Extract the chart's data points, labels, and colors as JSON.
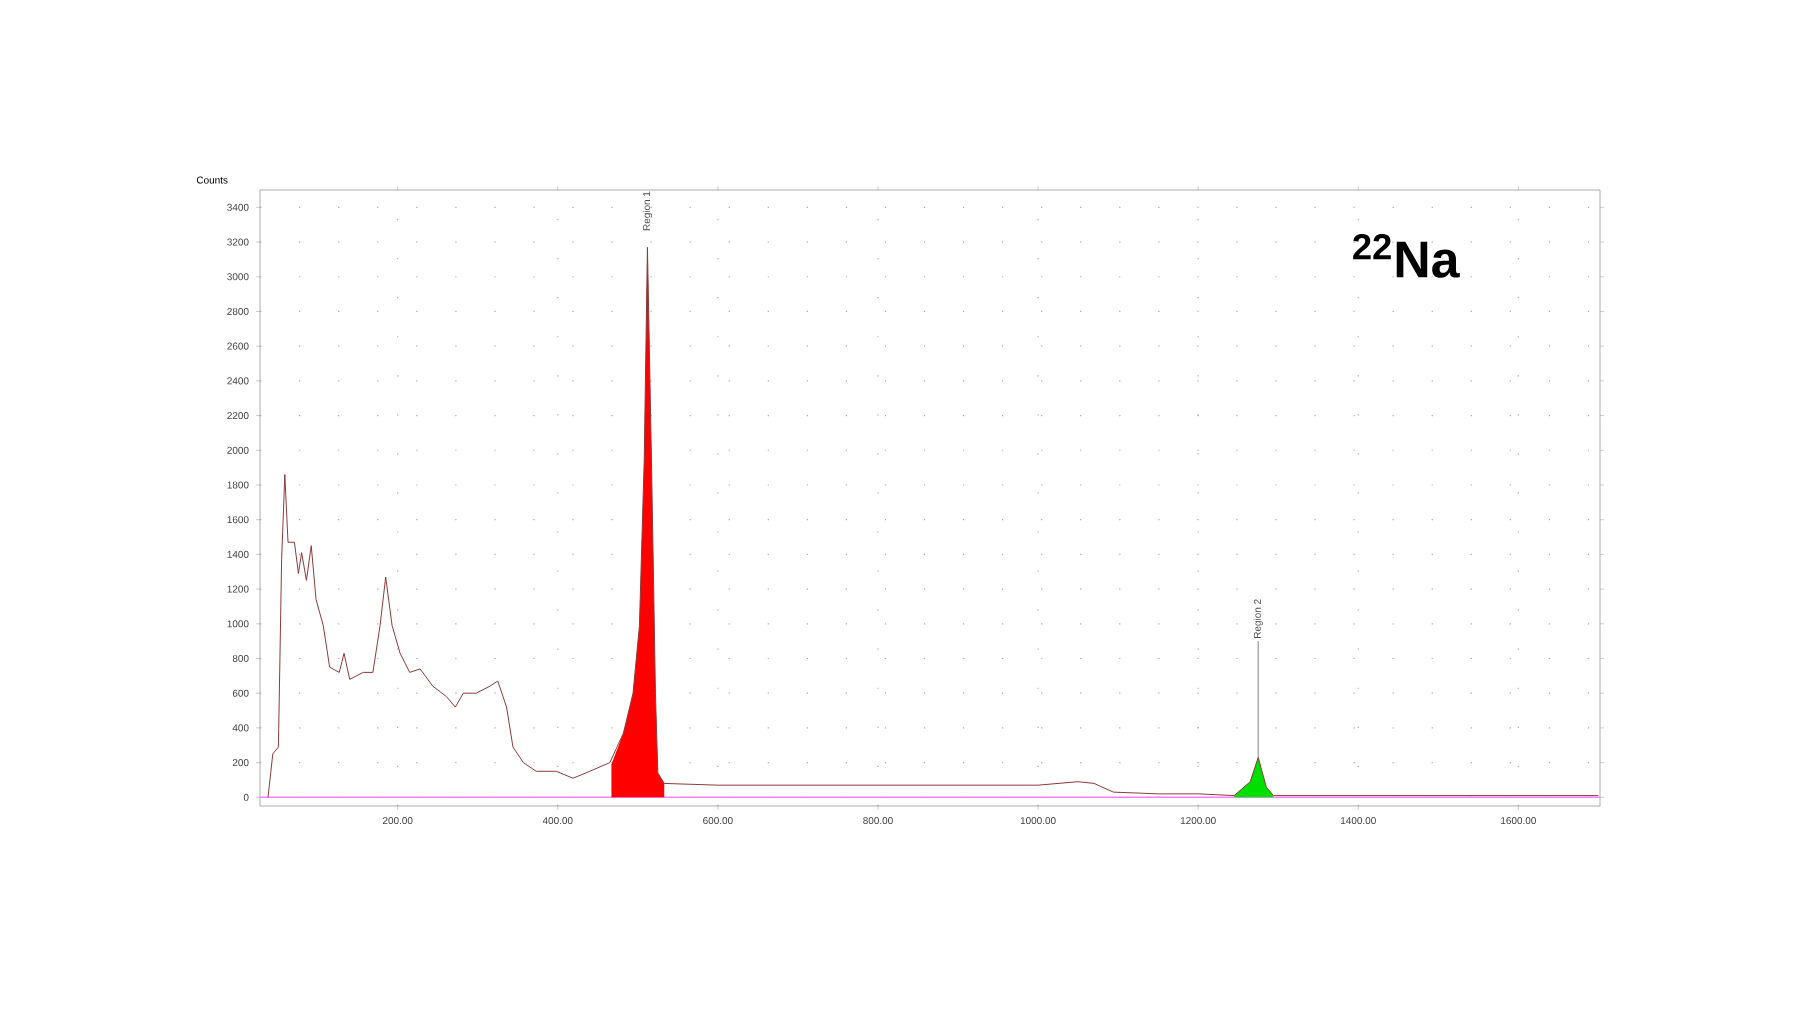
{
  "chart_data": {
    "type": "line",
    "title": "$^{22}$Na",
    "ylabel": "Counts",
    "xlim": [
      28,
      1702
    ],
    "ylim": [
      -50,
      3500
    ],
    "xticks": [
      {
        "value": 200,
        "label": "200.00"
      },
      {
        "value": 400,
        "label": "400.00"
      },
      {
        "value": 600,
        "label": "600.00"
      },
      {
        "value": 800,
        "label": "800.00"
      },
      {
        "value": 1000,
        "label": "1000.00"
      },
      {
        "value": 1200,
        "label": "1200.00"
      },
      {
        "value": 1400,
        "label": "1400.00"
      },
      {
        "value": 1600,
        "label": "1600.00"
      }
    ],
    "yticks": [
      0,
      200,
      400,
      600,
      800,
      1000,
      1200,
      1400,
      1600,
      1800,
      2000,
      2200,
      2400,
      2600,
      2800,
      3000,
      3200,
      3400
    ],
    "grid": true,
    "series": [
      {
        "color": "#8b3a3a",
        "x": [
          38,
          44,
          51,
          55,
          59,
          63,
          71,
          76,
          80,
          86,
          92,
          98,
          107,
          115,
          127,
          133,
          140,
          157,
          169,
          178,
          185,
          193,
          203,
          215,
          228,
          244,
          261,
          272,
          282,
          298,
          315,
          325,
          336,
          344,
          357,
          373,
          398,
          419,
          440,
          465,
          482,
          494,
          502,
          508,
          512,
          517,
          522,
          525,
          533,
          600,
          700,
          800,
          900,
          1000,
          1050,
          1070,
          1094,
          1150,
          1200,
          1245,
          1265,
          1275,
          1285,
          1294,
          1400,
          1500,
          1600,
          1700
        ],
        "values": [
          0,
          250,
          290,
          1370,
          1860,
          1470,
          1470,
          1290,
          1410,
          1250,
          1450,
          1140,
          990,
          750,
          720,
          830,
          680,
          720,
          720,
          990,
          1270,
          990,
          830,
          720,
          740,
          640,
          580,
          520,
          600,
          600,
          640,
          670,
          520,
          290,
          200,
          150,
          150,
          110,
          150,
          200,
          370,
          600,
          990,
          1950,
          3170,
          1950,
          600,
          140,
          80,
          70,
          70,
          70,
          70,
          70,
          90,
          80,
          30,
          20,
          20,
          10,
          90,
          230,
          60,
          10,
          10,
          10,
          10,
          10
        ]
      },
      {
        "type": "area",
        "color": "#ff0000",
        "x": [
          467,
          482,
          494,
          502,
          508,
          512,
          517,
          522,
          525,
          533
        ],
        "values": [
          190,
          370,
          600,
          990,
          1950,
          3170,
          1950,
          600,
          140,
          80
        ]
      },
      {
        "type": "area",
        "color": "#00e000",
        "x": [
          1245,
          1265,
          1275,
          1285,
          1294
        ],
        "values": [
          10,
          90,
          230,
          60,
          10
        ]
      }
    ],
    "ref_lines": [
      {
        "axis": "y",
        "value": 0,
        "color": "#ff80ff"
      }
    ],
    "annotations": [
      {
        "text": "Region 1",
        "x": 512,
        "y": 3170
      },
      {
        "text": "Region 2",
        "x": 1275,
        "y": 230
      }
    ]
  }
}
